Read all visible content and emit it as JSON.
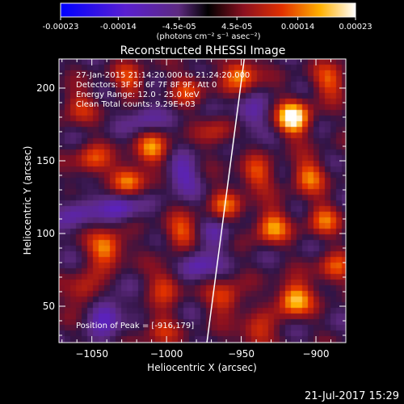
{
  "chart_data": {
    "type": "heatmap",
    "title": "Reconstructed RHESSI Image",
    "xlabel": "Heliocentric X (arcsec)",
    "ylabel": "Heliocentric Y (arcsec)",
    "xlim": [
      -1072,
      -880
    ],
    "ylim": [
      25,
      220
    ],
    "xticks": [
      -1050,
      -1000,
      -950,
      -900
    ],
    "yticks": [
      50,
      100,
      150,
      200
    ],
    "colorbar": {
      "ticks": [
        -0.00023,
        -0.00014,
        -4.5e-05,
        4.5e-05,
        0.00014,
        0.00023
      ],
      "tick_labels": [
        "-0.00023",
        "-0.00014",
        "-4.5e-05",
        "4.5e-05",
        "0.00014",
        "0.00023"
      ],
      "range": [
        -0.00023,
        0.00023
      ],
      "unit_label": "(photons cm⁻² s⁻¹ asec⁻²)"
    },
    "annotations": [
      "27-Jan-2015 21:14:20.000 to 21:24:20.000",
      "Detectors: 3F 5F 6F 7F 8F 9F, Att 0",
      "Energy Range: 12.0 - 25.0 keV",
      "Clean     Total counts: 9.29E+03",
      "Position of Peak = [-916,179]"
    ],
    "peak": {
      "x": -916,
      "y": 179
    },
    "limb_line": [
      {
        "x": -948,
        "y": 220
      },
      {
        "x": -973,
        "y": 25
      }
    ],
    "blobs": [
      {
        "x": -915,
        "y": 179,
        "v": 0.00023
      },
      {
        "x": -950,
        "y": 210,
        "v": 0.00016
      },
      {
        "x": -1010,
        "y": 158,
        "v": 0.00014
      },
      {
        "x": -1025,
        "y": 136,
        "v": 0.00016
      },
      {
        "x": -1050,
        "y": 150,
        "v": 0.00012
      },
      {
        "x": -1060,
        "y": 188,
        "v": 0.0001
      },
      {
        "x": -940,
        "y": 140,
        "v": 0.00012
      },
      {
        "x": -905,
        "y": 140,
        "v": 0.00014
      },
      {
        "x": -960,
        "y": 120,
        "v": 0.00011
      },
      {
        "x": -930,
        "y": 105,
        "v": 0.00016
      },
      {
        "x": -895,
        "y": 110,
        "v": 0.00012
      },
      {
        "x": -990,
        "y": 100,
        "v": 0.00013
      },
      {
        "x": -1040,
        "y": 90,
        "v": 0.00018
      },
      {
        "x": -1055,
        "y": 60,
        "v": 0.00012
      },
      {
        "x": -1000,
        "y": 65,
        "v": 0.00011
      },
      {
        "x": -960,
        "y": 55,
        "v": 0.00013
      },
      {
        "x": -915,
        "y": 55,
        "v": 0.0002
      },
      {
        "x": -888,
        "y": 75,
        "v": 0.00012
      },
      {
        "x": -985,
        "y": 200,
        "v": 0.0001
      },
      {
        "x": -1025,
        "y": 205,
        "v": 0.00011
      },
      {
        "x": -965,
        "y": 170,
        "v": 9e-05
      },
      {
        "x": -1005,
        "y": 35,
        "v": 0.0001
      },
      {
        "x": -940,
        "y": 30,
        "v": 0.00012
      },
      {
        "x": -890,
        "y": 205,
        "v": 0.00013
      },
      {
        "x": -975,
        "y": 240,
        "v": 0.0001
      },
      {
        "x": -1030,
        "y": 120,
        "v": -0.00012
      },
      {
        "x": -990,
        "y": 140,
        "v": -0.0001
      },
      {
        "x": -945,
        "y": 180,
        "v": -9e-05
      },
      {
        "x": -980,
        "y": 80,
        "v": -0.00011
      },
      {
        "x": -1040,
        "y": 45,
        "v": -0.00013
      },
      {
        "x": -1015,
        "y": 180,
        "v": -8e-05
      },
      {
        "x": -965,
        "y": 100,
        "v": -6e-05
      },
      {
        "x": -1060,
        "y": 115,
        "v": -9e-05
      }
    ]
  },
  "footer": {
    "timestamp": "21-Jul-2017 15:29"
  }
}
